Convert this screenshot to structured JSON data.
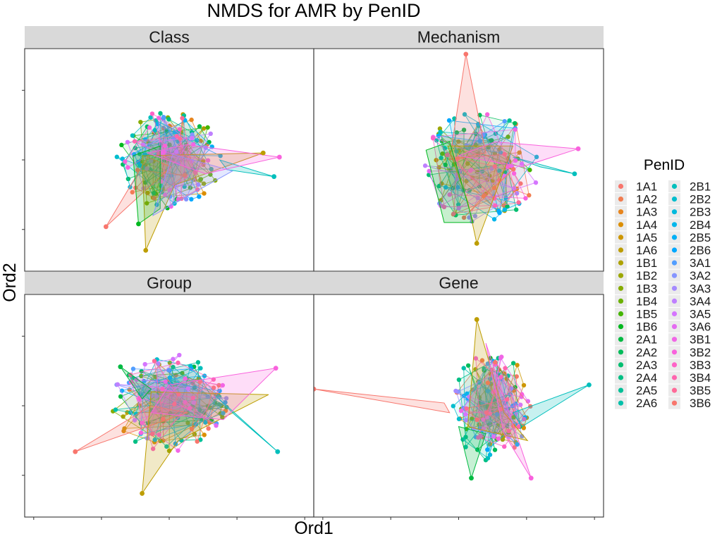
{
  "chart_data": {
    "type": "scatter",
    "title": "NMDS for AMR by PenID",
    "xlabel": "Ord1",
    "ylabel": "Ord2",
    "legend": {
      "title": "PenID",
      "position": "right",
      "columns": 2
    },
    "grid": false,
    "tick_labels_shown": false,
    "xlim": [
      -0.8,
      0.8
    ],
    "ylim": [
      -0.8,
      0.8
    ],
    "groups": [
      "1A1",
      "1A2",
      "1A3",
      "1A4",
      "1A5",
      "1A6",
      "1B1",
      "1B2",
      "1B3",
      "1B4",
      "1B5",
      "1B6",
      "2A1",
      "2A2",
      "2A3",
      "2A4",
      "2A5",
      "2A6",
      "2B1",
      "2B2",
      "2B3",
      "2B4",
      "2B5",
      "2B6",
      "3A1",
      "3A2",
      "3A3",
      "3A4",
      "3A5",
      "3A6",
      "3B1",
      "3B2",
      "3B3",
      "3B4",
      "3B5",
      "3B6"
    ],
    "colors": [
      "#F8766D",
      "#F17D51",
      "#E7851E",
      "#DB8E00",
      "#CD9600",
      "#BD9D00",
      "#AEA200",
      "#9CA700",
      "#86AC00",
      "#6BB100",
      "#45B500",
      "#00B81F",
      "#00BA42",
      "#00BC5A",
      "#00BE70",
      "#00BF84",
      "#00C097",
      "#00C0AA",
      "#00BFBC",
      "#00BDCD",
      "#00BADD",
      "#00B6EB",
      "#00B0F6",
      "#00A8FF",
      "#529EFF",
      "#8595FF",
      "#A58AFF",
      "#BF80FF",
      "#D575FE",
      "#E46BF1",
      "#F166E6",
      "#F962DD",
      "#FE62C7",
      "#FF65AE",
      "#FF6A98",
      "#F8766D"
    ],
    "panels": [
      {
        "facet": "Class",
        "hulls": [
          {
            "group": "1A1",
            "points": [
              [
                -0.35,
                -0.48
              ],
              [
                -0.12,
                0.02
              ],
              [
                0.01,
                -0.05
              ]
            ]
          },
          {
            "group": "1A6",
            "points": [
              [
                -0.13,
                -0.65
              ],
              [
                -0.15,
                0.03
              ],
              [
                0.52,
                0.05
              ],
              [
                0.03,
                -0.18
              ]
            ]
          },
          {
            "group": "1B6",
            "points": [
              [
                -0.17,
                -0.46
              ],
              [
                -0.2,
                0.03
              ],
              [
                -0.05,
                0.1
              ],
              [
                -0.05,
                -0.35
              ]
            ]
          },
          {
            "group": "2B1",
            "points": [
              [
                0.58,
                -0.12
              ],
              [
                0.28,
                0.0
              ],
              [
                0.32,
                -0.07
              ]
            ]
          },
          {
            "group": "3A2",
            "points": [
              [
                0.35,
                -0.08
              ],
              [
                0.02,
                0.04
              ],
              [
                -0.09,
                -0.4
              ]
            ]
          },
          {
            "group": "3B2",
            "points": [
              [
                0.61,
                0.02
              ],
              [
                0.1,
                0.11
              ],
              [
                -0.12,
                0.05
              ],
              [
                0.2,
                -0.1
              ]
            ]
          }
        ],
        "extra_points": [
          {
            "group": "1A1",
            "x": -0.35,
            "y": -0.48
          },
          {
            "group": "1A6",
            "x": -0.13,
            "y": -0.65
          },
          {
            "group": "1A6",
            "x": 0.52,
            "y": 0.05
          },
          {
            "group": "2B1",
            "x": 0.58,
            "y": -0.12
          },
          {
            "group": "3B2",
            "x": 0.61,
            "y": 0.02
          },
          {
            "group": "1B6",
            "x": -0.17,
            "y": -0.46
          }
        ]
      },
      {
        "facet": "Mechanism",
        "hulls": [
          {
            "group": "1A1",
            "points": [
              [
                0.04,
                0.76
              ],
              [
                0.15,
                0.05
              ],
              [
                -0.05,
                0.0
              ]
            ]
          },
          {
            "group": "1A6",
            "points": [
              [
                0.1,
                -0.6
              ],
              [
                0.3,
                0.1
              ],
              [
                -0.06,
                0.1
              ],
              [
                0.05,
                -0.3
              ]
            ]
          },
          {
            "group": "1B6",
            "points": [
              [
                -0.18,
                0.07
              ],
              [
                -0.05,
                0.13
              ],
              [
                0.08,
                -0.45
              ],
              [
                -0.08,
                -0.45
              ]
            ]
          },
          {
            "group": "2B1",
            "points": [
              [
                0.64,
                -0.1
              ],
              [
                0.3,
                0.02
              ],
              [
                0.45,
                -0.05
              ]
            ]
          },
          {
            "group": "3B2",
            "points": [
              [
                0.66,
                0.08
              ],
              [
                0.2,
                0.13
              ],
              [
                0.0,
                0.03
              ],
              [
                0.35,
                -0.05
              ]
            ]
          }
        ],
        "extra_points": [
          {
            "group": "1A1",
            "x": 0.04,
            "y": 0.76
          },
          {
            "group": "1A6",
            "x": 0.1,
            "y": -0.6
          },
          {
            "group": "2B1",
            "x": 0.64,
            "y": -0.1
          },
          {
            "group": "3B2",
            "x": 0.66,
            "y": 0.08
          }
        ]
      },
      {
        "facet": "Group",
        "hulls": [
          {
            "group": "1A1",
            "points": [
              [
                -0.52,
                -0.33
              ],
              [
                -0.1,
                0.0
              ],
              [
                0.1,
                -0.05
              ]
            ]
          },
          {
            "group": "1A6",
            "points": [
              [
                -0.15,
                -0.63
              ],
              [
                -0.1,
                0.1
              ],
              [
                0.55,
                0.08
              ],
              [
                0.05,
                -0.25
              ]
            ]
          },
          {
            "group": "2A1",
            "points": [
              [
                -0.27,
                0.28
              ],
              [
                -0.1,
                0.12
              ],
              [
                -0.15,
                0.05
              ]
            ]
          },
          {
            "group": "2B1",
            "points": [
              [
                0.6,
                -0.33
              ],
              [
                0.25,
                0.08
              ],
              [
                0.35,
                -0.05
              ]
            ]
          },
          {
            "group": "3B2",
            "points": [
              [
                0.59,
                0.27
              ],
              [
                0.0,
                0.15
              ],
              [
                -0.1,
                -0.05
              ],
              [
                0.3,
                -0.1
              ]
            ]
          }
        ],
        "extra_points": [
          {
            "group": "1A1",
            "x": -0.52,
            "y": -0.33
          },
          {
            "group": "1A6",
            "x": -0.15,
            "y": -0.63
          },
          {
            "group": "2A1",
            "x": -0.27,
            "y": 0.28
          },
          {
            "group": "2B1",
            "x": 0.6,
            "y": -0.33
          },
          {
            "group": "3B2",
            "x": 0.59,
            "y": 0.27
          }
        ]
      },
      {
        "facet": "Gene",
        "hulls": [
          {
            "group": "1A1",
            "points": [
              [
                -0.8,
                0.12
              ],
              [
                -0.08,
                0.02
              ],
              [
                -0.05,
                -0.05
              ]
            ]
          },
          {
            "group": "1A6",
            "points": [
              [
                0.1,
                0.62
              ],
              [
                0.25,
                -0.05
              ],
              [
                0.38,
                -0.25
              ],
              [
                0.05,
                -0.15
              ]
            ]
          },
          {
            "group": "2A1",
            "points": [
              [
                0.07,
                -0.52
              ],
              [
                0.15,
                -0.2
              ],
              [
                0.0,
                -0.15
              ]
            ]
          },
          {
            "group": "2B1",
            "points": [
              [
                0.72,
                0.15
              ],
              [
                0.3,
                -0.05
              ],
              [
                0.35,
                -0.15
              ]
            ]
          },
          {
            "group": "3B2",
            "points": [
              [
                0.4,
                -0.52
              ],
              [
                0.15,
                0.45
              ],
              [
                0.25,
                -0.2
              ]
            ]
          }
        ],
        "extra_points": [
          {
            "group": "1A1",
            "x": -0.8,
            "y": 0.12
          },
          {
            "group": "1A6",
            "x": 0.1,
            "y": 0.62
          },
          {
            "group": "2A1",
            "x": 0.07,
            "y": -0.52
          },
          {
            "group": "2B1",
            "x": 0.72,
            "y": 0.15
          },
          {
            "group": "3B2",
            "x": 0.4,
            "y": -0.52
          }
        ]
      }
    ]
  }
}
